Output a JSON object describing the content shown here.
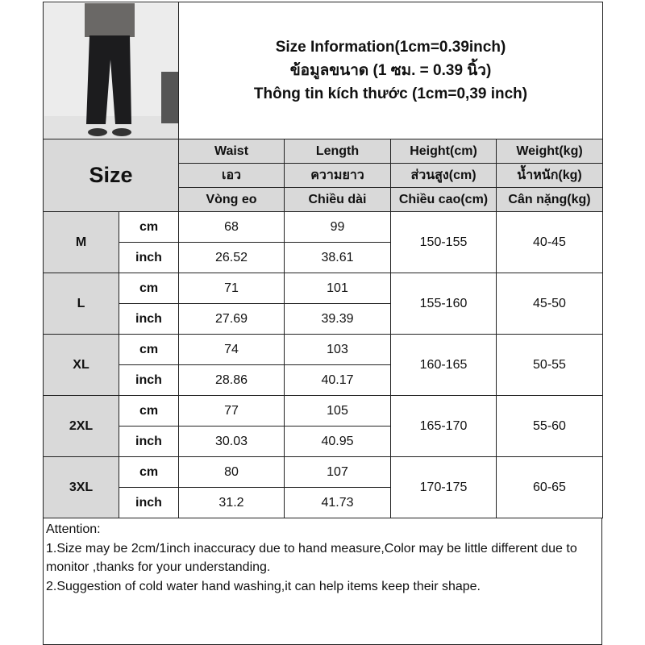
{
  "title": {
    "line1": "Size Information(1cm=0.39inch)",
    "line2": "ข้อมูลขนาด (1 ซม. = 0.39 นิ้ว)",
    "line3": "Thông tin kích thước (1cm=0,39 inch)"
  },
  "size_label": "Size",
  "headers": [
    {
      "en": "Waist",
      "th": "เอว",
      "vi": "Vòng eo"
    },
    {
      "en": "Length",
      "th": "ความยาว",
      "vi": "Chiều dài"
    },
    {
      "en": "Height(cm)",
      "th": "ส่วนสูง(cm)",
      "vi": "Chiều cao(cm)"
    },
    {
      "en": "Weight(kg)",
      "th": "น้ำหนัก(kg)",
      "vi": "Cân nặng(kg)"
    }
  ],
  "units": {
    "cm": "cm",
    "inch": "inch"
  },
  "rows": [
    {
      "size": "M",
      "cm": {
        "waist": "68",
        "length": "99"
      },
      "inch": {
        "waist": "26.52",
        "length": "38.61"
      },
      "height": "150-155",
      "weight": "40-45"
    },
    {
      "size": "L",
      "cm": {
        "waist": "71",
        "length": "101"
      },
      "inch": {
        "waist": "27.69",
        "length": "39.39"
      },
      "height": "155-160",
      "weight": "45-50"
    },
    {
      "size": "XL",
      "cm": {
        "waist": "74",
        "length": "103"
      },
      "inch": {
        "waist": "28.86",
        "length": "40.17"
      },
      "height": "160-165",
      "weight": "50-55"
    },
    {
      "size": "2XL",
      "cm": {
        "waist": "77",
        "length": "105"
      },
      "inch": {
        "waist": "30.03",
        "length": "40.95"
      },
      "height": "165-170",
      "weight": "55-60"
    },
    {
      "size": "3XL",
      "cm": {
        "waist": "80",
        "length": "107"
      },
      "inch": {
        "waist": "31.2",
        "length": "41.73"
      },
      "height": "170-175",
      "weight": "60-65"
    }
  ],
  "attention": {
    "heading": "Attention:",
    "note1": "1.Size may be 2cm/1inch inaccuracy due to hand measure,Color may be little different due to monitor ,thanks for your understanding.",
    "note2": "2.Suggestion of cold water hand washing,it can help items keep their shape."
  }
}
